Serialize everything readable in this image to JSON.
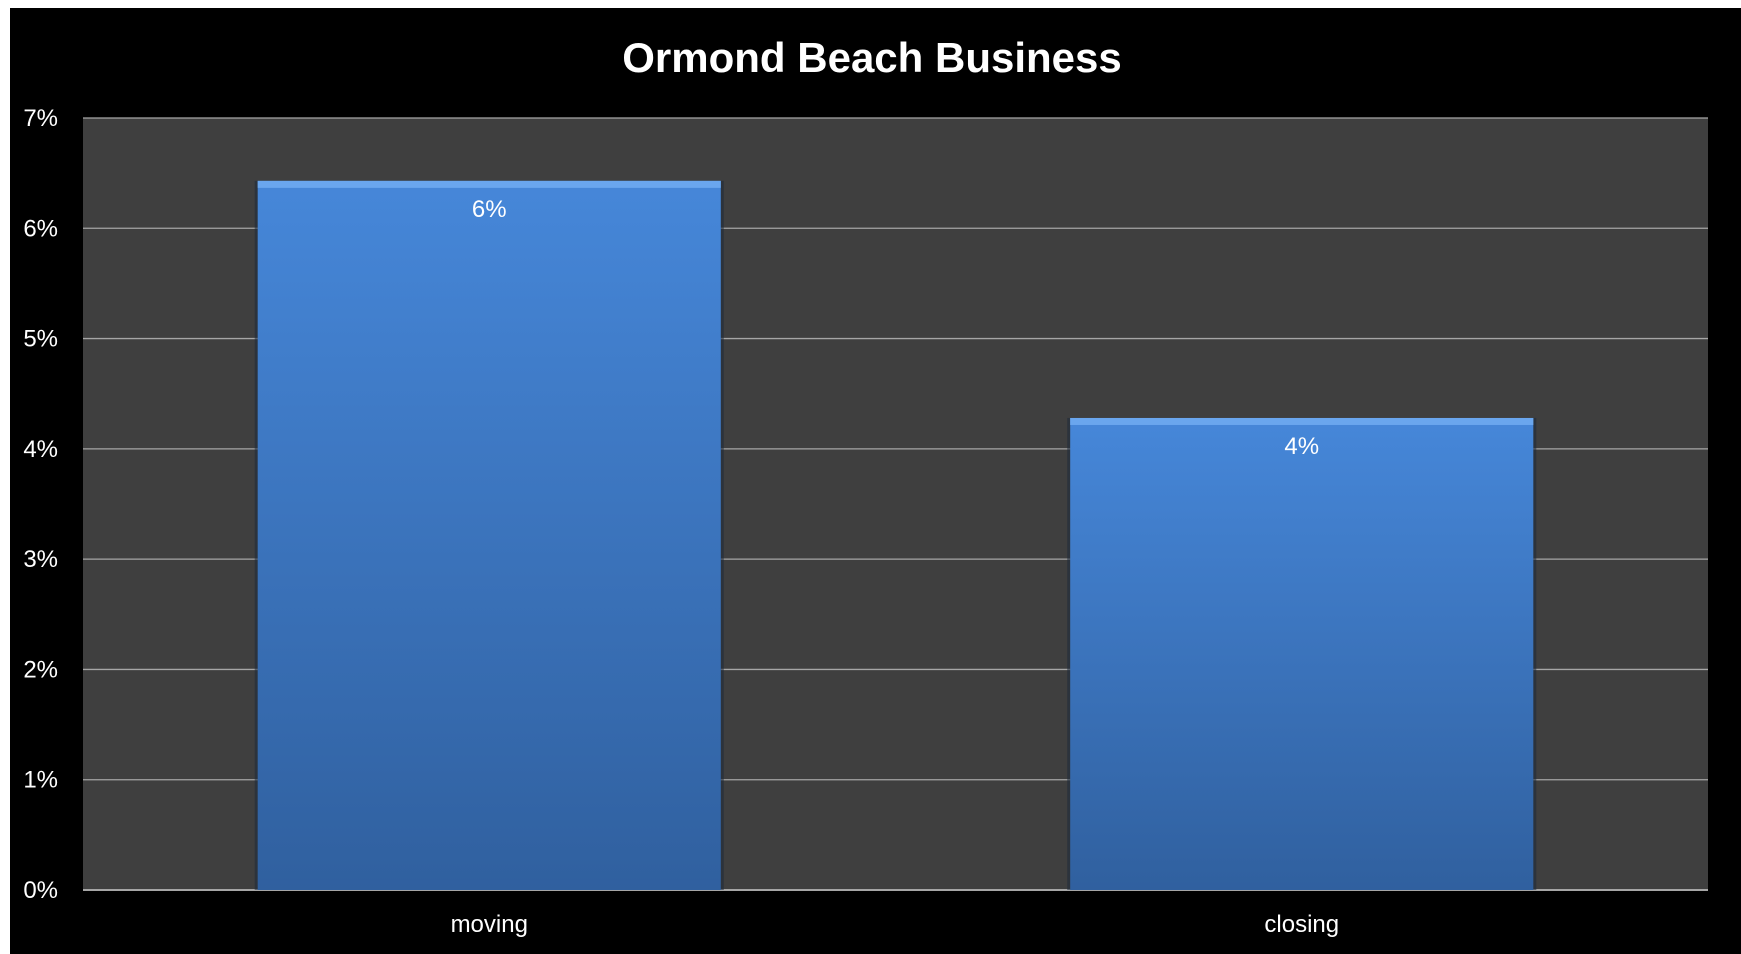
{
  "chart_data": {
    "type": "bar",
    "title": "Ormond Beach Business",
    "categories": [
      "moving",
      "closing"
    ],
    "values": [
      0.0643,
      0.0428
    ],
    "data_labels": [
      "6%",
      "4%"
    ],
    "y_ticks": [
      "0%",
      "1%",
      "2%",
      "3%",
      "4%",
      "5%",
      "6%",
      "7%"
    ],
    "ylim": [
      0,
      0.07
    ],
    "xlabel": "",
    "ylabel": "",
    "grid": true,
    "legend": "none",
    "colors": {
      "background": "#000000",
      "plot_area": "#3f3f3f",
      "gridline": "#a6a6a6",
      "bar_top": "#4687d9",
      "bar_bottom": "#30609f",
      "bar_cap": "#6aa6ee",
      "text": "#ffffff"
    }
  }
}
